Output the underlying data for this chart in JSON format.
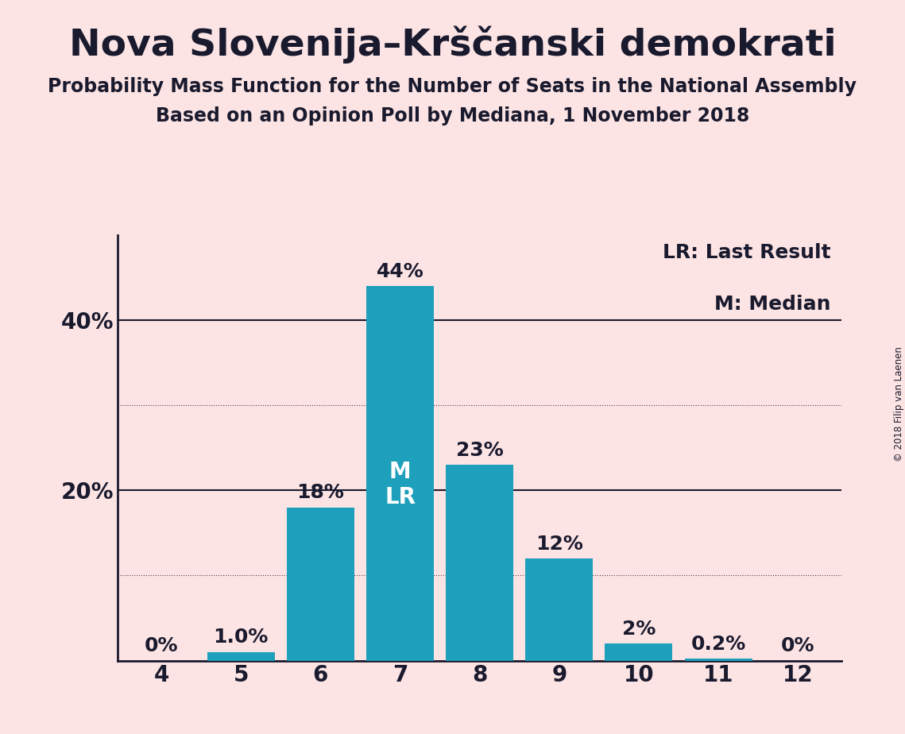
{
  "title": "Nova Slovenija–Krščanski demokrati",
  "subtitle1": "Probability Mass Function for the Number of Seats in the National Assembly",
  "subtitle2": "Based on an Opinion Poll by Mediana, 1 November 2018",
  "copyright": "© 2018 Filip van Laenen",
  "categories": [
    4,
    5,
    6,
    7,
    8,
    9,
    10,
    11,
    12
  ],
  "values": [
    0.0,
    1.0,
    18.0,
    44.0,
    23.0,
    12.0,
    2.0,
    0.2,
    0.0
  ],
  "bar_labels": [
    "0%",
    "1.0%",
    "18%",
    "44%",
    "23%",
    "12%",
    "2%",
    "0.2%",
    "0%"
  ],
  "bar_color": "#1e9fbc",
  "background_color": "#fce4e4",
  "text_color": "#1a1a2e",
  "title_fontsize": 34,
  "subtitle_fontsize": 17,
  "axis_label_fontsize": 20,
  "bar_label_fontsize": 18,
  "ylim": [
    0,
    50
  ],
  "legend_text1": "LR: Last Result",
  "legend_text2": "M: Median",
  "median_bar": 7,
  "last_result_bar": 7,
  "annotation_color": "#ffffff",
  "annotation_fontsize": 20
}
